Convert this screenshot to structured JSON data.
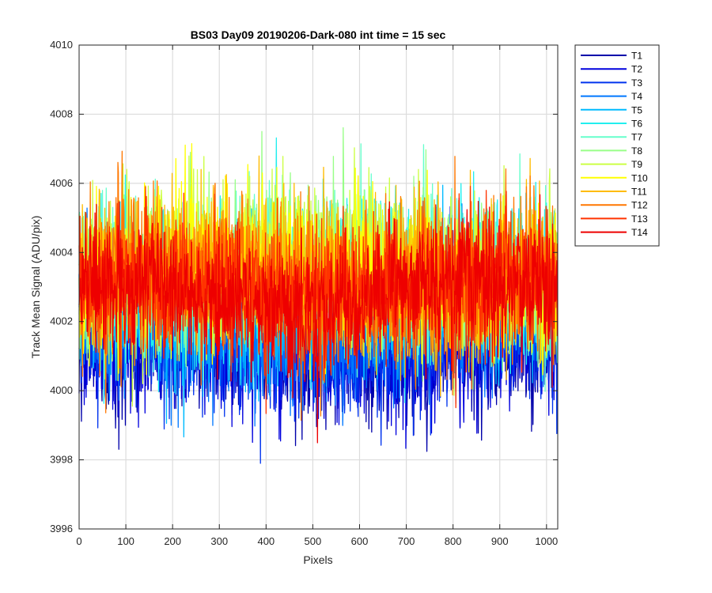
{
  "chart_data": {
    "type": "line",
    "title": "BS03 Day09 20190206-Dark-080 int time = 15 sec",
    "xlabel": "Pixels",
    "ylabel": "Track Mean Signal (ADU/pix)",
    "xlim": [
      0,
      1024
    ],
    "ylim": [
      3996,
      4010
    ],
    "x_ticks": [
      "0",
      "100",
      "200",
      "300",
      "400",
      "500",
      "600",
      "700",
      "800",
      "900",
      "1000"
    ],
    "y_ticks": [
      "3996",
      "3998",
      "4000",
      "4002",
      "4004",
      "4006",
      "4008",
      "4010"
    ],
    "grid": true,
    "legend_position": "outside-top-right",
    "n_points": 1024,
    "series": [
      {
        "name": "T1",
        "color": "#0000aa",
        "mean": 4001.2,
        "spread": 1.6
      },
      {
        "name": "T2",
        "color": "#0000dd",
        "mean": 4001.3,
        "spread": 1.6
      },
      {
        "name": "T3",
        "color": "#0033ee",
        "mean": 4001.6,
        "spread": 1.6
      },
      {
        "name": "T4",
        "color": "#0077ff",
        "mean": 4002.0,
        "spread": 1.7
      },
      {
        "name": "T5",
        "color": "#00bbff",
        "mean": 4002.6,
        "spread": 1.8
      },
      {
        "name": "T6",
        "color": "#22eeee",
        "mean": 4003.2,
        "spread": 1.8
      },
      {
        "name": "T7",
        "color": "#66ffcc",
        "mean": 4003.4,
        "spread": 1.8
      },
      {
        "name": "T8",
        "color": "#99ff88",
        "mean": 4003.5,
        "spread": 1.8
      },
      {
        "name": "T9",
        "color": "#ccff44",
        "mean": 4003.5,
        "spread": 1.8
      },
      {
        "name": "T10",
        "color": "#ffff00",
        "mean": 4003.4,
        "spread": 1.8
      },
      {
        "name": "T11",
        "color": "#ffbb00",
        "mean": 4003.3,
        "spread": 1.8
      },
      {
        "name": "T12",
        "color": "#ff7700",
        "mean": 4003.2,
        "spread": 1.8
      },
      {
        "name": "T13",
        "color": "#ff3300",
        "mean": 4003.0,
        "spread": 1.7
      },
      {
        "name": "T14",
        "color": "#ee0000",
        "mean": 4002.8,
        "spread": 1.6
      }
    ]
  }
}
